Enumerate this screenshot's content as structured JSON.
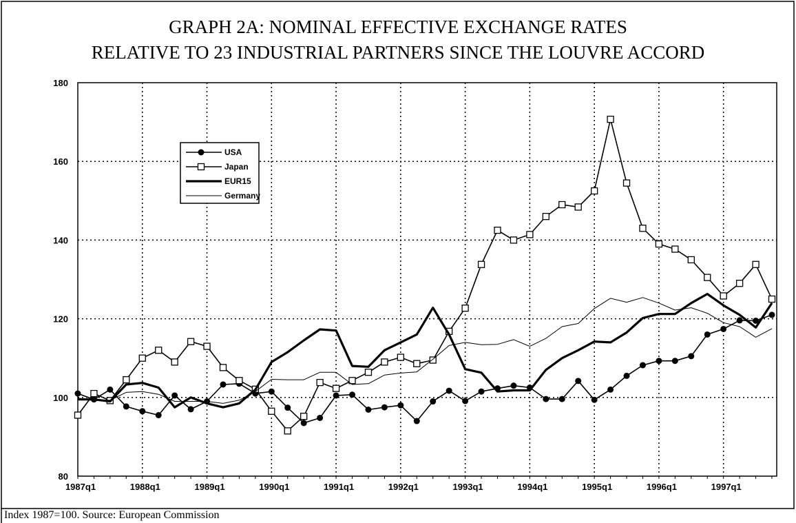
{
  "chart_data": {
    "type": "line",
    "title": [
      "GRAPH 2A: NOMINAL EFFECTIVE EXCHANGE RATES",
      "RELATIVE TO 23 INDUSTRIAL PARTNERS SINCE THE LOUVRE ACCORD"
    ],
    "note": "Index 1987=100. Source: European Commission",
    "categories": [
      "1987q1",
      null,
      null,
      null,
      "1988q1",
      null,
      null,
      null,
      "1989q1",
      null,
      null,
      null,
      "1990q1",
      null,
      null,
      null,
      "1991q1",
      null,
      null,
      null,
      "1992q1",
      null,
      null,
      null,
      "1993q1",
      null,
      null,
      null,
      "1994q1",
      null,
      null,
      null,
      "1995q1",
      null,
      null,
      null,
      "1996q1",
      null,
      null,
      null,
      "1997q1",
      null,
      null,
      null
    ],
    "ylim": [
      80,
      180
    ],
    "yticks": [
      80,
      100,
      120,
      140,
      160,
      180
    ],
    "grid": true,
    "legend": "upper-left",
    "series": [
      {
        "name": "USA",
        "color": "#000000",
        "marker": "circle",
        "line_width": 1.6,
        "values": [
          101,
          99.5,
          102,
          97.7,
          96.5,
          95.5,
          100.5,
          97,
          99,
          103.3,
          103.5,
          101,
          101.5,
          97.4,
          93.5,
          94.8,
          100.5,
          100.7,
          96.9,
          97.5,
          98,
          94,
          99,
          101.7,
          99.1,
          101.5,
          102.3,
          103,
          102.5,
          99.6,
          99.6,
          104.2,
          99.4,
          102,
          105.5,
          108.2,
          109.3,
          109.3,
          110.5,
          116,
          117.4,
          119.6,
          119.5,
          121
        ]
      },
      {
        "name": "Japan",
        "color": "#000000",
        "marker": "square",
        "line_width": 1.6,
        "values": [
          95.5,
          101,
          99.2,
          104.5,
          110,
          112,
          109,
          114.2,
          113,
          107.6,
          104.3,
          102.1,
          96.5,
          91.5,
          95.2,
          103.8,
          102.3,
          104.3,
          106.4,
          109,
          110.2,
          108.6,
          109.5,
          116.8,
          122.7,
          133.8,
          142.5,
          140,
          141.4,
          146,
          149,
          148.4,
          152.5,
          170.7,
          154.5,
          143,
          139,
          137.7,
          135,
          130.5,
          125.8,
          129,
          133.8,
          125
        ]
      },
      {
        "name": "EUR15",
        "color": "#000000",
        "line_width": 3.2,
        "values": [
          99.5,
          99.5,
          99,
          103.3,
          103.7,
          102.5,
          97.5,
          100,
          98.5,
          97.5,
          98.5,
          102,
          109,
          111.5,
          114.5,
          117.3,
          117,
          108,
          107.8,
          112,
          114,
          116,
          122.8,
          116,
          107.2,
          106.3,
          101.5,
          101.8,
          101.8,
          107,
          110,
          112,
          114.2,
          114,
          116.5,
          120.2,
          121.2,
          121.2,
          124,
          126.3,
          123.4,
          121,
          117.8,
          124
        ]
      },
      {
        "name": "Germany",
        "color": "#000000",
        "line_width": 1,
        "values": [
          99.8,
          99.5,
          99.3,
          101.3,
          101.5,
          100.8,
          99,
          99,
          99,
          98.5,
          99.3,
          101.5,
          104.6,
          104.5,
          104.5,
          106.4,
          106.4,
          103.3,
          103.5,
          105.7,
          106.2,
          106.5,
          109.7,
          113.2,
          114,
          113.4,
          113.5,
          114.7,
          113,
          115,
          118,
          118.8,
          122.6,
          125.2,
          124.2,
          125.4,
          124,
          122.2,
          122.8,
          121.4,
          119,
          118,
          115.3,
          117.5
        ]
      }
    ]
  }
}
